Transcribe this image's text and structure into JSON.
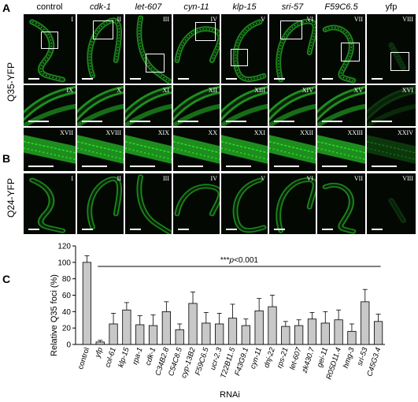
{
  "panels": {
    "A": "A",
    "B": "B",
    "C": "C"
  },
  "columns": [
    "control",
    "cdk-1",
    "let-607",
    "cyn-11",
    "klp-15",
    "sri-57",
    "F59C6.5",
    "yfp"
  ],
  "rowA_label": "Q35-YFP",
  "rowB_label": "Q24-YFP",
  "romanA1": [
    "I",
    "II",
    "III",
    "IV",
    "V",
    "VI",
    "VII",
    "VIII"
  ],
  "romanA2": [
    "IX",
    "X",
    "XI",
    "XII",
    "XIII",
    "XIV",
    "XV",
    "XVI"
  ],
  "romanA3": [
    "XVII",
    "XVIII",
    "XIX",
    "XX",
    "XXI",
    "XXII",
    "XXIII",
    "XXIV"
  ],
  "romanB": [
    "I",
    "II",
    "III",
    "IV",
    "V",
    "VI",
    "VII",
    "VIII"
  ],
  "colors": {
    "background": "#030803",
    "worm_green": "#2ee82e",
    "bar_fill": "#c8c8c8",
    "bar_stroke": "#000000"
  },
  "chart_data": {
    "type": "bar",
    "ylabel": "Relative Q35 foci (%)",
    "xlabel": "RNAi",
    "ylim": [
      0,
      120
    ],
    "yticks": [
      0,
      20,
      40,
      60,
      80,
      100,
      120
    ],
    "annotation": "***p<0.001",
    "annotation_parts": {
      "stars": "***",
      "p": "p",
      "rest": "<0.001"
    },
    "categories": [
      "control",
      "yfp",
      "col-61",
      "klp-15",
      "rpa-1",
      "cdk-1",
      "C34B2.8",
      "C54C8.5",
      "cyp-13B2",
      "F59C6.5",
      "ucr-2.3",
      "T22B11.5",
      "F43G9.1",
      "cyn-11",
      "dnj-22",
      "rps-21",
      "let-607",
      "zk430.7",
      "gei-11",
      "R05D11.4",
      "hmg-3",
      "sri-53",
      "C45G3.4"
    ],
    "values": [
      100,
      3,
      25,
      42,
      24,
      23,
      40,
      18,
      50,
      26,
      25,
      32,
      23,
      41,
      46,
      22,
      23,
      31,
      26,
      30,
      16,
      52,
      28
    ],
    "errors": [
      8,
      2,
      13,
      9,
      11,
      13,
      12,
      7,
      14,
      13,
      13,
      17,
      8,
      15,
      14,
      6,
      7,
      8,
      14,
      12,
      9,
      15,
      9
    ]
  }
}
